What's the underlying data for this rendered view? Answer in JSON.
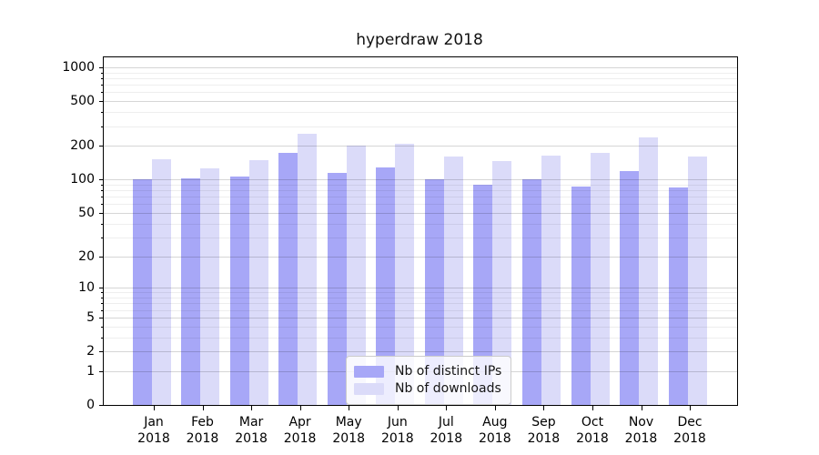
{
  "title": "hyperdraw 2018",
  "legend": {
    "position": "lower center",
    "items": [
      "Nb of distinct IPs",
      "Nb of downloads"
    ]
  },
  "chart_data": {
    "type": "bar",
    "title": "hyperdraw 2018",
    "xlabel": "",
    "ylabel": "",
    "yscale": "log1p",
    "grid": "major+minor horizontal, drawn over bars",
    "legend_position": "lower center",
    "categories": [
      "Jan 2018",
      "Feb 2018",
      "Mar 2018",
      "Apr 2018",
      "May 2018",
      "Jun 2018",
      "Jul 2018",
      "Aug 2018",
      "Sep 2018",
      "Oct 2018",
      "Nov 2018",
      "Dec 2018"
    ],
    "series": [
      {
        "name": "Nb of distinct IPs",
        "color": "#a7a7f7",
        "values": [
          100,
          103,
          107,
          172,
          115,
          128,
          100,
          90,
          100,
          87,
          118,
          84
        ]
      },
      {
        "name": "Nb of downloads",
        "color": "#dbdbf9",
        "values": [
          152,
          125,
          150,
          255,
          200,
          210,
          160,
          145,
          163,
          173,
          240,
          160
        ]
      }
    ],
    "y_major_ticks": [
      0,
      1,
      2,
      5,
      10,
      20,
      50,
      100,
      200,
      500,
      1000
    ],
    "y_minor_ticks": [
      3,
      4,
      6,
      7,
      8,
      9,
      30,
      40,
      60,
      70,
      80,
      90,
      300,
      400,
      600,
      700,
      800,
      900
    ],
    "ylim": [
      0,
      1228
    ]
  }
}
